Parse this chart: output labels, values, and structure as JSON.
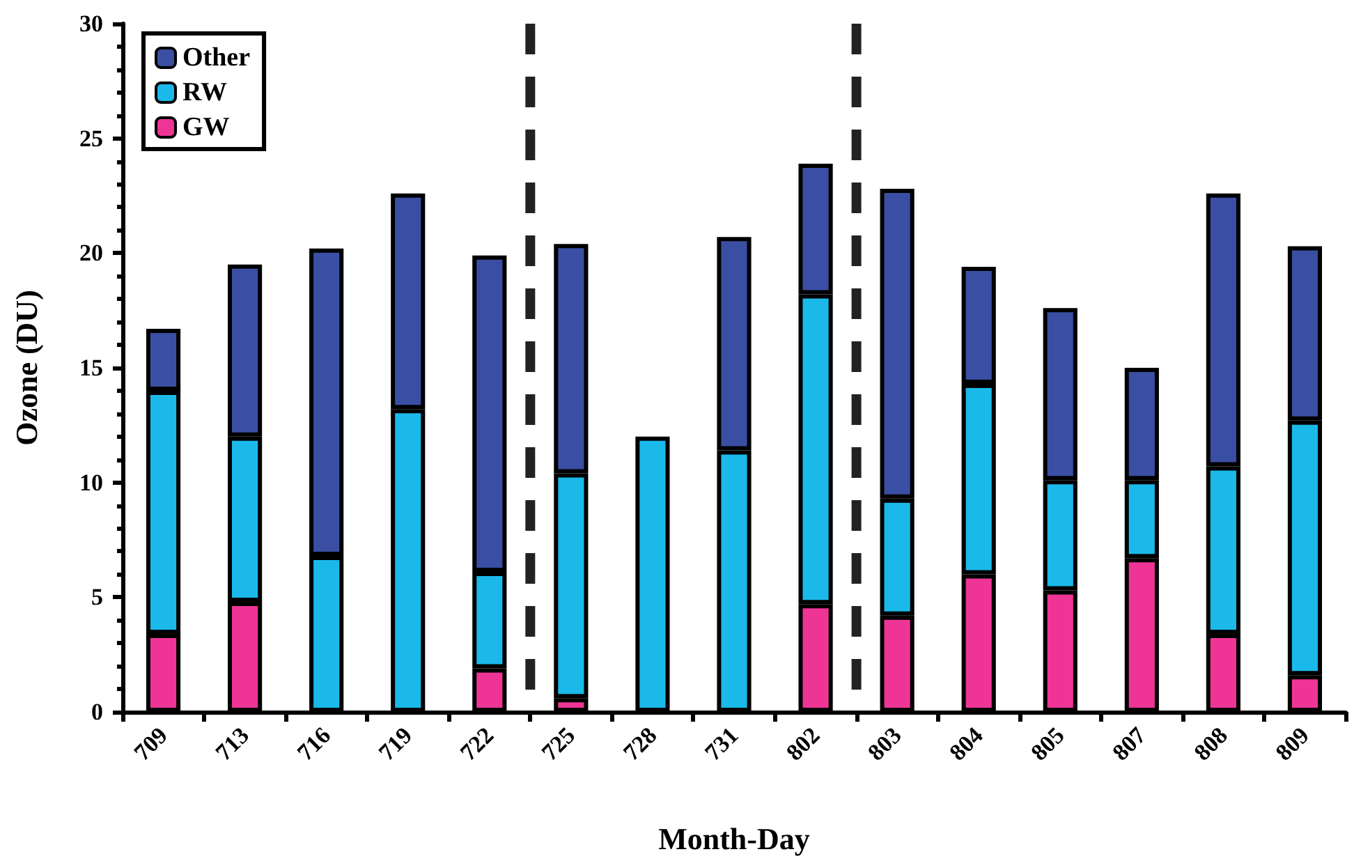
{
  "chart_data": {
    "type": "bar",
    "stacked": true,
    "xlabel": "Month-Day",
    "ylabel": "Ozone (DU)",
    "categories": [
      "709",
      "713",
      "716",
      "719",
      "722",
      "725",
      "728",
      "731",
      "802",
      "803",
      "804",
      "805",
      "807",
      "808",
      "809"
    ],
    "series": [
      {
        "name": "GW",
        "color": "#ee3596",
        "values": [
          3.4,
          4.8,
          0,
          0,
          1.9,
          0.6,
          0,
          0,
          4.7,
          4.2,
          6.0,
          5.3,
          6.7,
          3.4,
          1.6
        ]
      },
      {
        "name": "RW",
        "color": "#1bb9ea",
        "values": [
          10.6,
          7.2,
          6.8,
          13.2,
          4.2,
          9.8,
          12.0,
          11.4,
          13.5,
          5.1,
          8.3,
          4.8,
          3.4,
          7.3,
          11.1
        ]
      },
      {
        "name": "Other",
        "color": "#3a4fa3",
        "values": [
          2.7,
          7.5,
          13.4,
          9.4,
          13.8,
          10.0,
          0,
          9.3,
          5.7,
          13.5,
          5.1,
          7.5,
          4.9,
          11.9,
          7.6
        ]
      }
    ],
    "ylim": [
      0,
      30
    ],
    "yticks": [
      0,
      5,
      10,
      15,
      20,
      25,
      30
    ],
    "grid": false,
    "legend": "top left"
  }
}
